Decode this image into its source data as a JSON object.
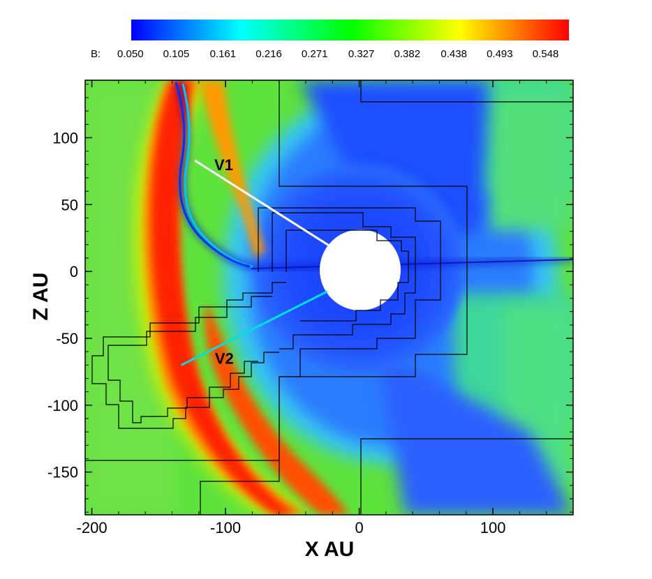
{
  "chart_data": {
    "type": "heatmap",
    "variable": "B",
    "xlabel": "X AU",
    "ylabel": "Z AU",
    "xlim": [
      -205,
      160
    ],
    "ylim": [
      -182,
      143
    ],
    "xticks": [
      -200,
      -100,
      0,
      100
    ],
    "yticks": [
      100,
      50,
      0,
      -50,
      -100,
      -150
    ],
    "colorbar": {
      "label": "B:",
      "min": 0.05,
      "max": 0.575,
      "ticks": [
        0.05,
        0.105,
        0.161,
        0.216,
        0.271,
        0.327,
        0.382,
        0.438,
        0.493,
        0.548
      ],
      "colors": [
        "#0000ff",
        "#00ffff",
        "#00ff00",
        "#ffff00",
        "#ff0000"
      ]
    },
    "inner_boundary_radius": 30,
    "trajectories": [
      {
        "name": "V1",
        "x": [
          -22,
          -123
        ],
        "z": [
          19,
          83
        ],
        "color": "#ffffff"
      },
      {
        "name": "V2",
        "x": [
          -24,
          -133
        ],
        "z": [
          -15,
          -70
        ],
        "color": "#00e0e0"
      }
    ]
  }
}
